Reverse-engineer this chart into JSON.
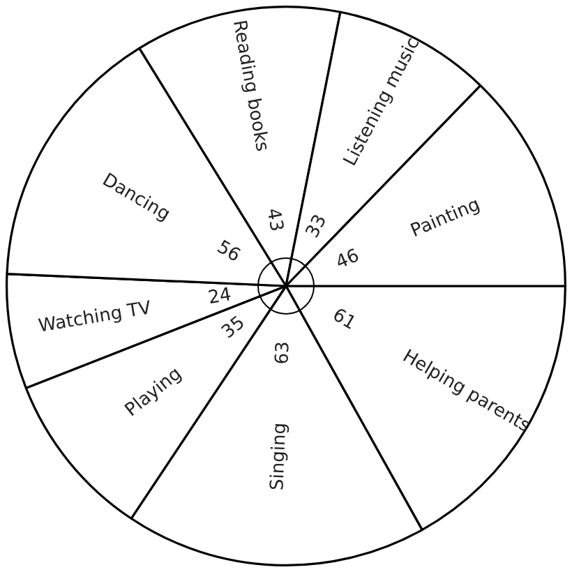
{
  "chart_data": {
    "type": "pie",
    "categories": [
      "Helping parents",
      "Singing",
      "Playing",
      "Watching TV",
      "Dancing",
      "Reading books",
      "Listening music",
      "Painting"
    ],
    "values": [
      61,
      63,
      35,
      24,
      56,
      43,
      33,
      46
    ],
    "colors": [
      "#ffffff",
      "#ffffff",
      "#ffffff",
      "#ffffff",
      "#ffffff",
      "#ffffff",
      "#ffffff",
      "#ffffff"
    ],
    "data_labels": true
  }
}
